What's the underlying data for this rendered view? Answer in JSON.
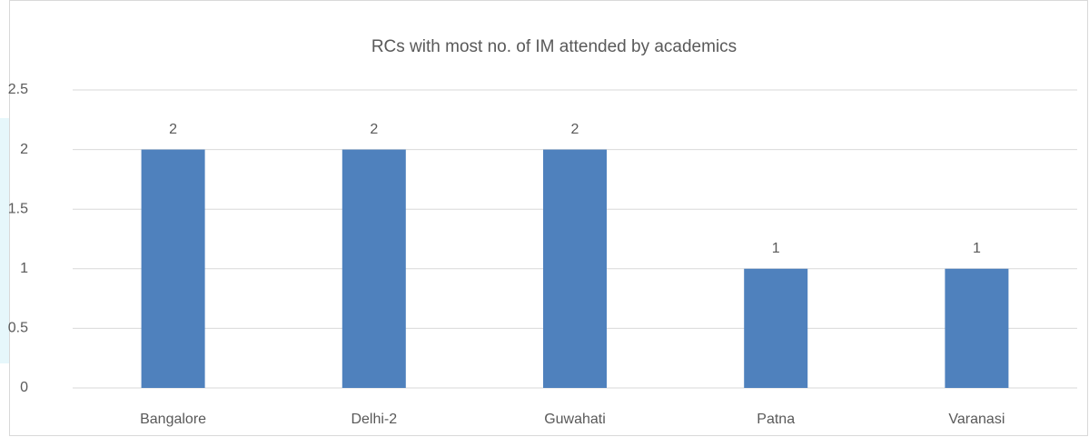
{
  "chart_data": {
    "type": "bar",
    "title": "RCs with most no. of IM attended by academics",
    "categories": [
      "Bangalore",
      "Delhi-2",
      "Guwahati",
      "Patna",
      "Varanasi"
    ],
    "values": [
      2,
      2,
      2,
      1,
      1
    ],
    "color": "#4f81bd",
    "ylim": [
      0,
      2.5
    ],
    "yticks": [
      0,
      0.5,
      1,
      1.5,
      2,
      2.5
    ],
    "grid": true
  }
}
